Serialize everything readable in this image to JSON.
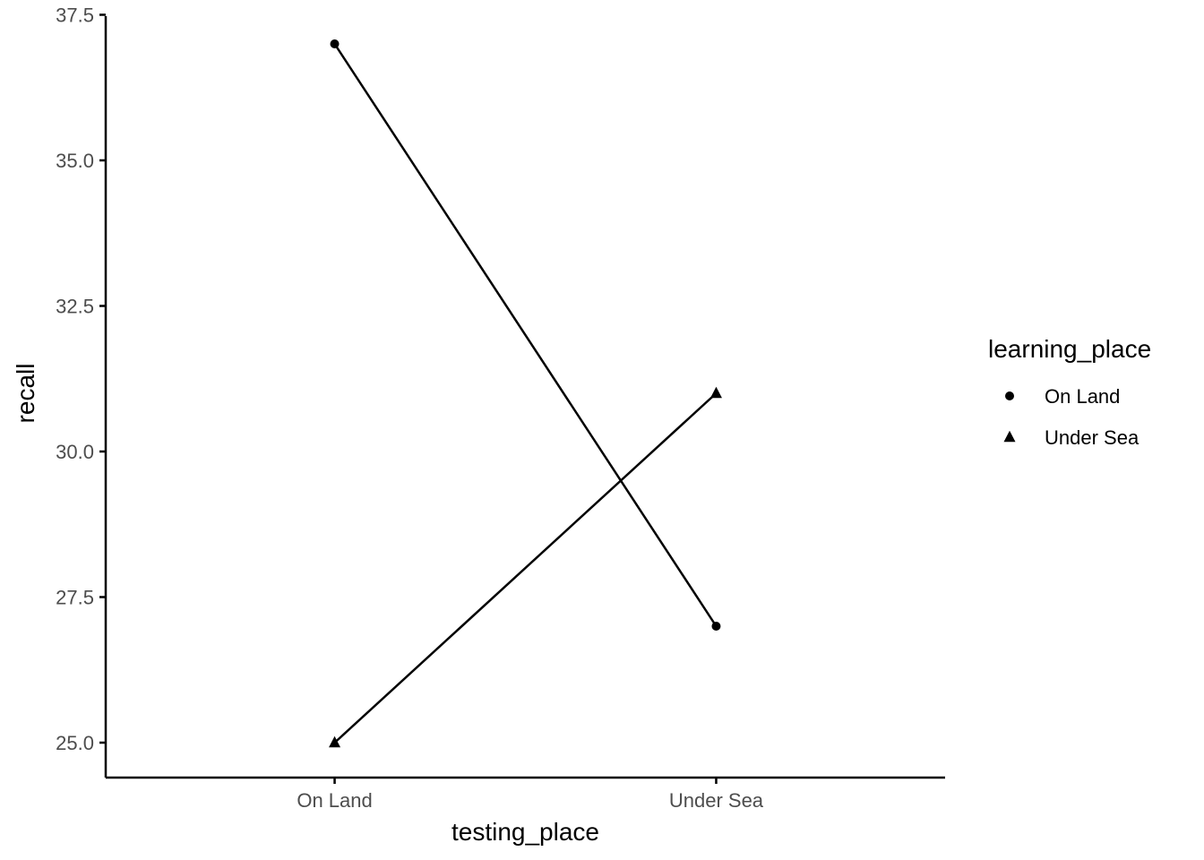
{
  "chart_data": {
    "type": "line",
    "title": "",
    "xlabel": "testing_place",
    "ylabel": "recall",
    "categories": [
      "On Land",
      "Under Sea"
    ],
    "ylim": [
      24.4,
      37.6
    ],
    "yticks": [
      25.0,
      27.5,
      30.0,
      32.5,
      35.0,
      37.5
    ],
    "ytick_labels": [
      "25.0",
      "27.5",
      "30.0",
      "32.5",
      "35.0",
      "37.5"
    ],
    "grid": false,
    "legend": {
      "title": "learning_place",
      "position": "right"
    },
    "series": [
      {
        "name": "On Land",
        "shape": "circle",
        "values": [
          37,
          27
        ]
      },
      {
        "name": "Under Sea",
        "shape": "triangle",
        "values": [
          25,
          31
        ]
      }
    ],
    "colors": {
      "line": "#000000",
      "axis": "#000000",
      "tick_text": "#4d4d4d"
    }
  }
}
